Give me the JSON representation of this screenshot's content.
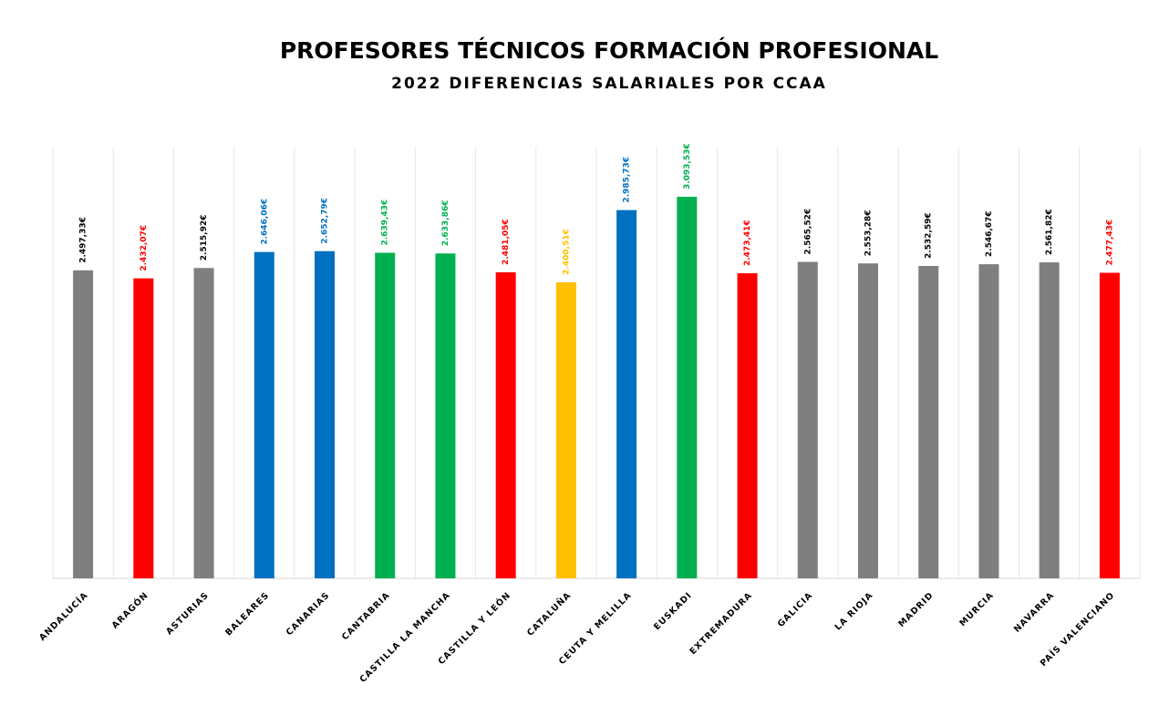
{
  "chart_data": {
    "type": "bar",
    "title": "PROFESORES TÉCNICOS FORMACIÓN PROFESIONAL",
    "subtitle": "2022 DIFERENCIAS SALARIALES POR CCAA",
    "categories": [
      "ANDALUCÍA",
      "ARAGÓN",
      "ASTURIAS",
      "BALEARES",
      "CANARIAS",
      "CANTABRIA",
      "CASTILLA LA MANCHA",
      "CASTILLA Y LEÓN",
      "CATALUÑA",
      "CEUTA Y MELILLA",
      "EUSKADI",
      "EXTREMADURA",
      "GALICIA",
      "LA RIOJA",
      "MADRID",
      "MURCIA",
      "NAVARRA",
      "PAÍS VALENCIANO"
    ],
    "values": [
      2497.33,
      2432.07,
      2515.92,
      2646.06,
      2652.79,
      2639.43,
      2633.86,
      2481.05,
      2400.51,
      2985.73,
      3093.53,
      2473.41,
      2565.52,
      2553.28,
      2532.59,
      2546.67,
      2561.82,
      2477.43
    ],
    "value_labels": [
      "2.497,33€",
      "2.432,07€",
      "2.515,92€",
      "2.646,06€",
      "2.652,79€",
      "2.639,43€",
      "2.633,86€",
      "2.481,05€",
      "2.400,51€",
      "2.985,73€",
      "3.093,53€",
      "2.473,41€",
      "2.565,52€",
      "2.553,28€",
      "2.532,59€",
      "2.546,67€",
      "2.561,82€",
      "2.477,43€"
    ],
    "colors": [
      "#7f7f7f",
      "#ff0000",
      "#7f7f7f",
      "#0070c0",
      "#0070c0",
      "#00b050",
      "#00b050",
      "#ff0000",
      "#ffc000",
      "#0070c0",
      "#00b050",
      "#ff0000",
      "#7f7f7f",
      "#7f7f7f",
      "#7f7f7f",
      "#7f7f7f",
      "#7f7f7f",
      "#ff0000"
    ],
    "label_colors": [
      "#000000",
      "#ff0000",
      "#000000",
      "#0070c0",
      "#0070c0",
      "#00b050",
      "#00b050",
      "#ff0000",
      "#ffc000",
      "#0070c0",
      "#00b050",
      "#ff0000",
      "#000000",
      "#000000",
      "#000000",
      "#000000",
      "#000000",
      "#ff0000"
    ],
    "ylim": [
      0,
      3500
    ]
  }
}
